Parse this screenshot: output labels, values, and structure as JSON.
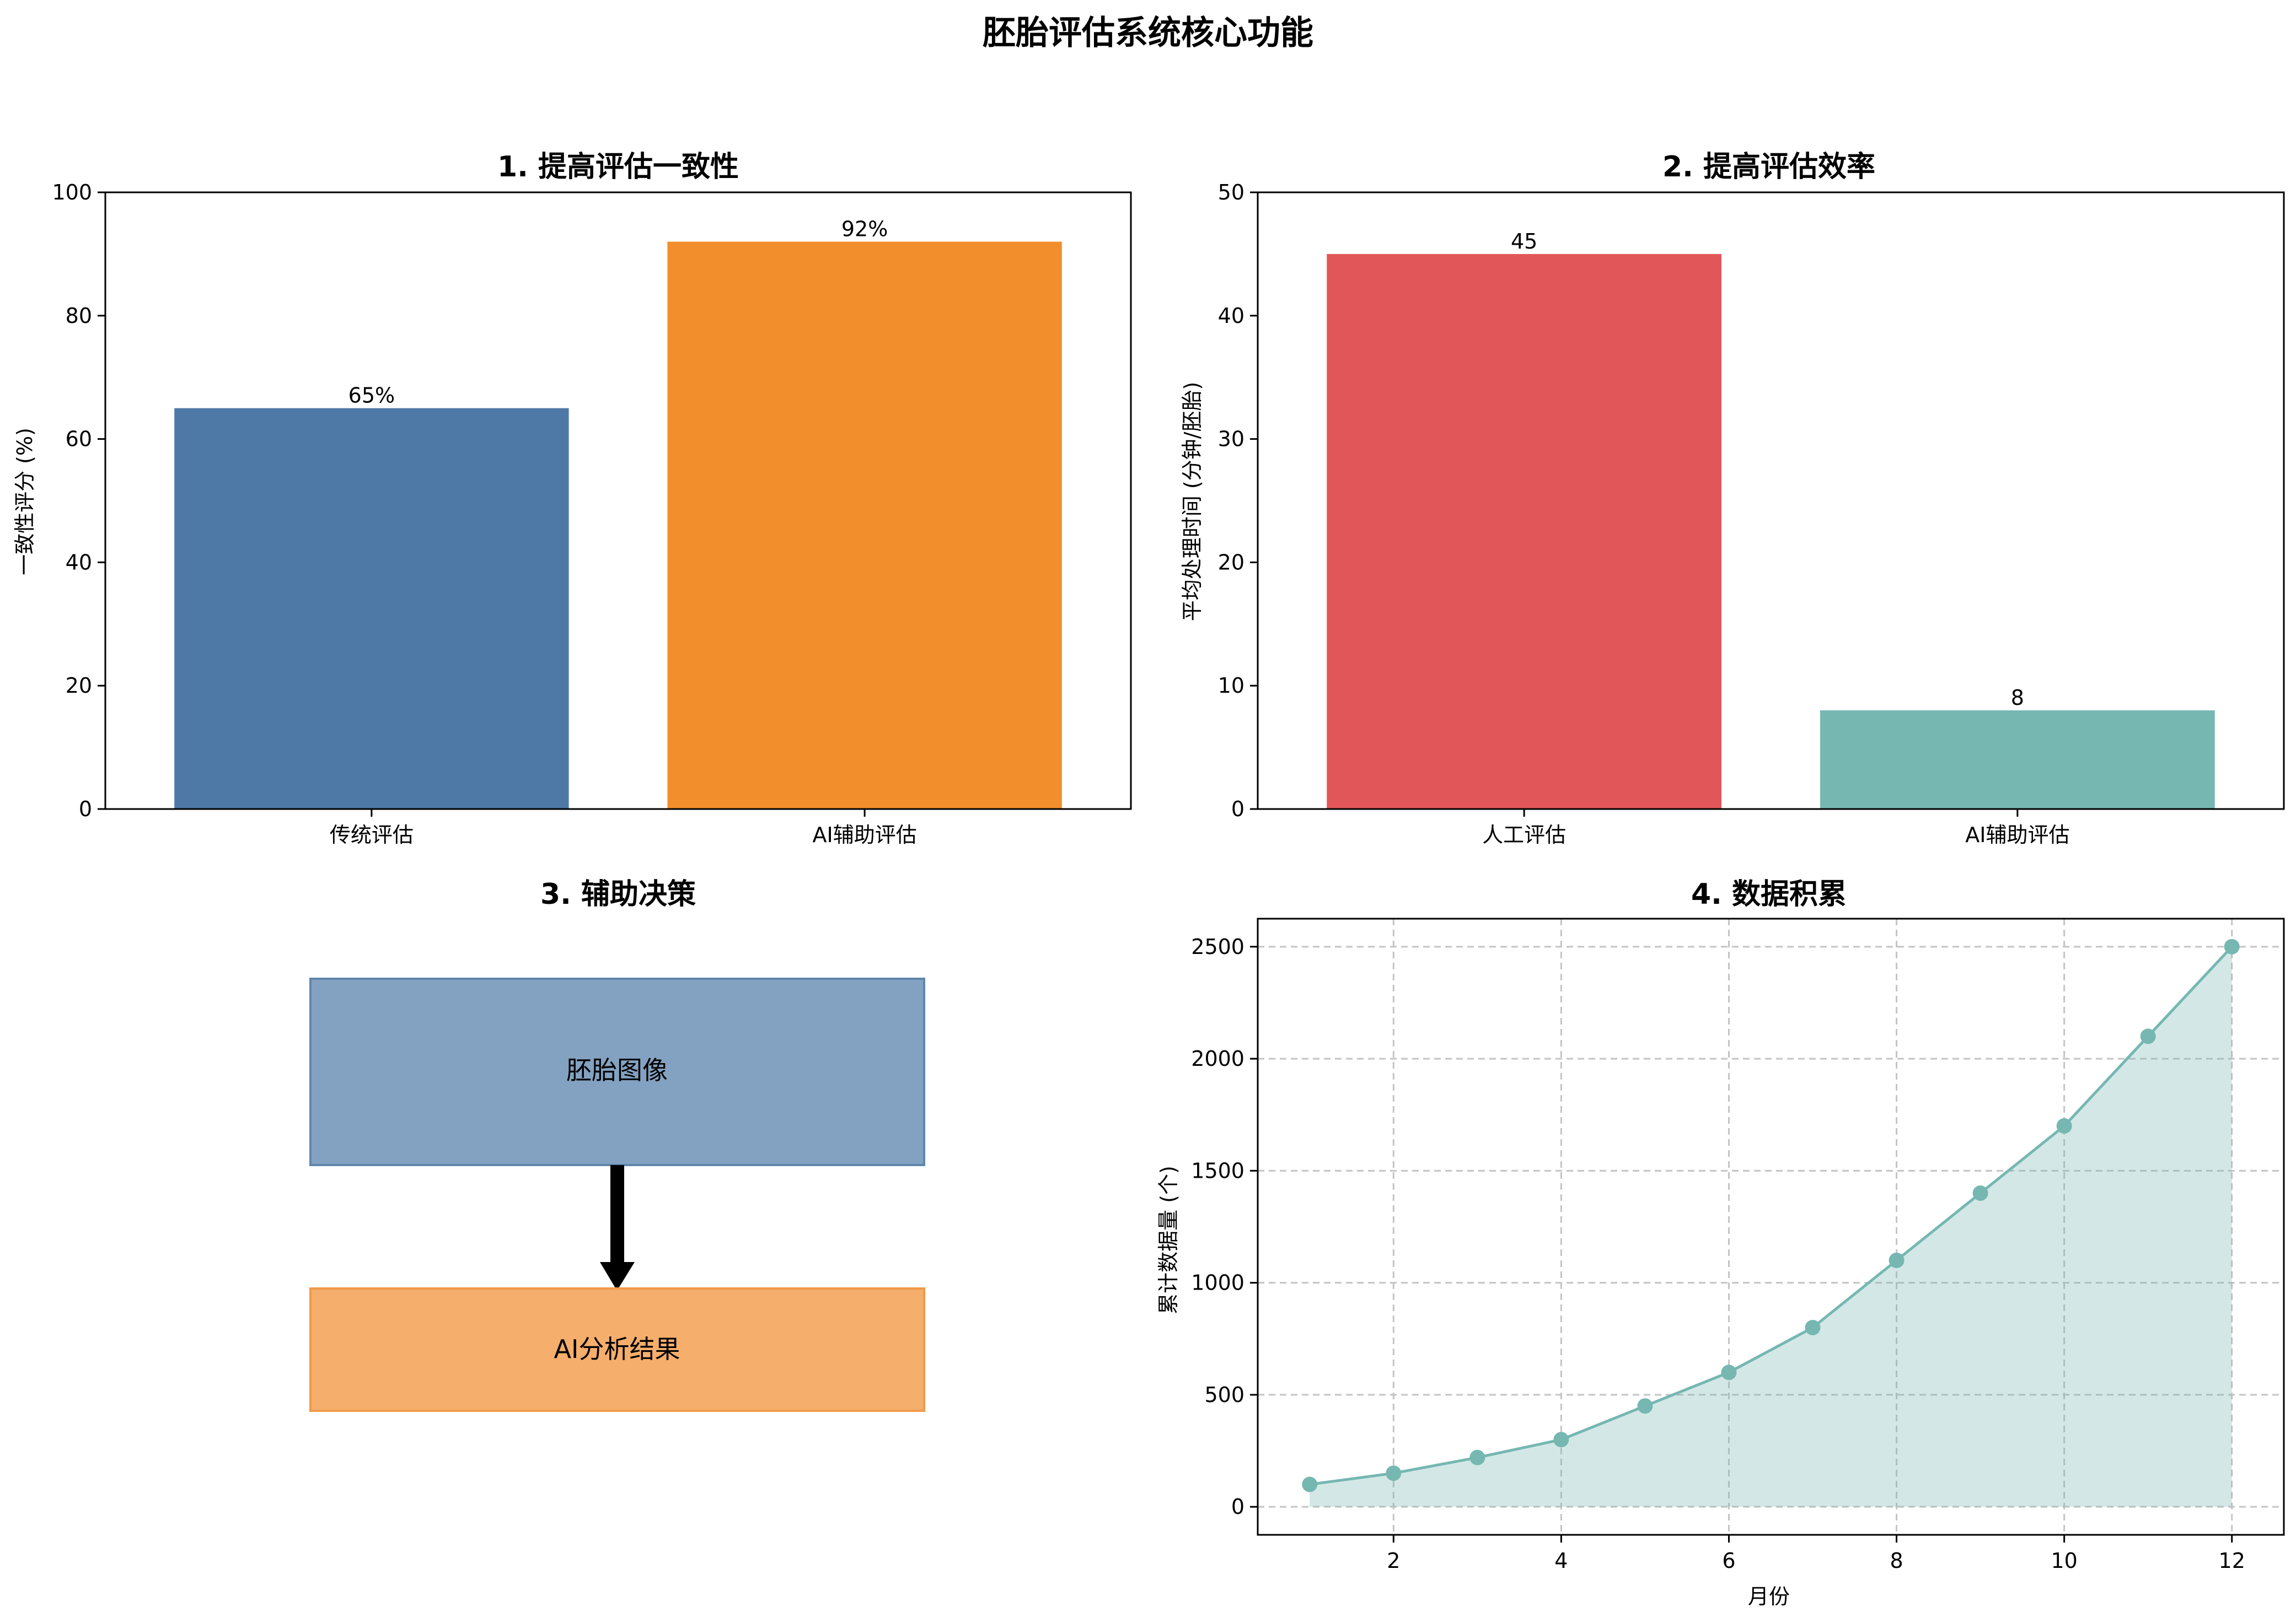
{
  "title": "胚胎评估系统核心功能",
  "colors": {
    "blue": "#4e79a7",
    "orange": "#f28e2b",
    "red": "#e15759",
    "teal": "#76b7b2",
    "box_blue_fill": "#83a2c1",
    "box_blue_stroke": "#5f86ad",
    "box_orange_fill": "#f5ae6b",
    "box_orange_stroke": "#f09a4a",
    "area_fill": "#d3e8e5",
    "grid": "#c8c8c8"
  },
  "chart_data": [
    {
      "type": "bar",
      "title": "1. 提高评估一致性",
      "categories": [
        "传统评估",
        "AI辅助评估"
      ],
      "values": [
        65,
        92
      ],
      "value_labels": [
        "65%",
        "92%"
      ],
      "bar_colors": [
        "#4e79a7",
        "#f28e2b"
      ],
      "xlabel": "",
      "ylabel": "一致性评分 (%)",
      "ylim": [
        0,
        100
      ],
      "yticks": [
        0,
        20,
        40,
        60,
        80,
        100
      ],
      "ytick_labels": [
        "0",
        "20",
        "40",
        "60",
        "80",
        "100"
      ],
      "grid": false
    },
    {
      "type": "bar",
      "title": "2. 提高评估效率",
      "categories": [
        "人工评估",
        "AI辅助评估"
      ],
      "values": [
        45,
        8
      ],
      "value_labels": [
        "45",
        "8"
      ],
      "bar_colors": [
        "#e15759",
        "#76b7b2"
      ],
      "xlabel": "",
      "ylabel": "平均处理时间 (分钟/胚胎)",
      "ylim": [
        0,
        50
      ],
      "yticks": [
        0,
        10,
        20,
        30,
        40,
        50
      ],
      "ytick_labels": [
        "0",
        "10",
        "20",
        "30",
        "40",
        "50"
      ],
      "grid": false
    },
    {
      "type": "line",
      "title": "4. 数据积累",
      "x": [
        1,
        2,
        3,
        4,
        5,
        6,
        7,
        8,
        9,
        10,
        11,
        12
      ],
      "series": [
        {
          "values": [
            100,
            150,
            220,
            300,
            450,
            600,
            800,
            1100,
            1400,
            1700,
            2100,
            2500
          ],
          "color": "#76b7b2"
        }
      ],
      "fill_area": true,
      "xlabel": "月份",
      "ylabel": "累计数据量 (个)",
      "xlim": [
        0.38,
        12.62
      ],
      "ylim": [
        -125,
        2625
      ],
      "xticks": [
        2,
        4,
        6,
        8,
        10,
        12
      ],
      "xtick_labels": [
        "2",
        "4",
        "6",
        "8",
        "10",
        "12"
      ],
      "yticks": [
        0,
        500,
        1000,
        1500,
        2000,
        2500
      ],
      "ytick_labels": [
        "0",
        "500",
        "1000",
        "1500",
        "2000",
        "2500"
      ],
      "grid": true
    }
  ],
  "diagram": {
    "title": "3. 辅助决策",
    "boxes": [
      {
        "label": "胚胎图像"
      },
      {
        "label": "AI分析结果"
      }
    ]
  }
}
